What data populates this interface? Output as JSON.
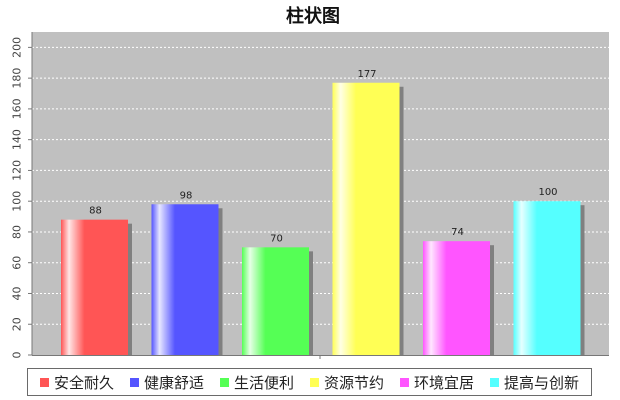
{
  "chart_data": {
    "type": "bar",
    "title": "柱状图",
    "categories": [
      "安全耐久",
      "健康舒适",
      "生活便利",
      "资源节约",
      "环境宜居",
      "提高与创新"
    ],
    "values": [
      88,
      98,
      70,
      177,
      74,
      100
    ],
    "colors": [
      "#ff5555",
      "#5555ff",
      "#55ff55",
      "#ffff55",
      "#ff55ff",
      "#55ffff"
    ],
    "ylim": [
      0,
      210
    ],
    "yticks": [
      0,
      20,
      40,
      60,
      80,
      100,
      120,
      140,
      160,
      180,
      200
    ],
    "grid": true,
    "legend_position": "bottom",
    "background": "#c0c0c0"
  }
}
